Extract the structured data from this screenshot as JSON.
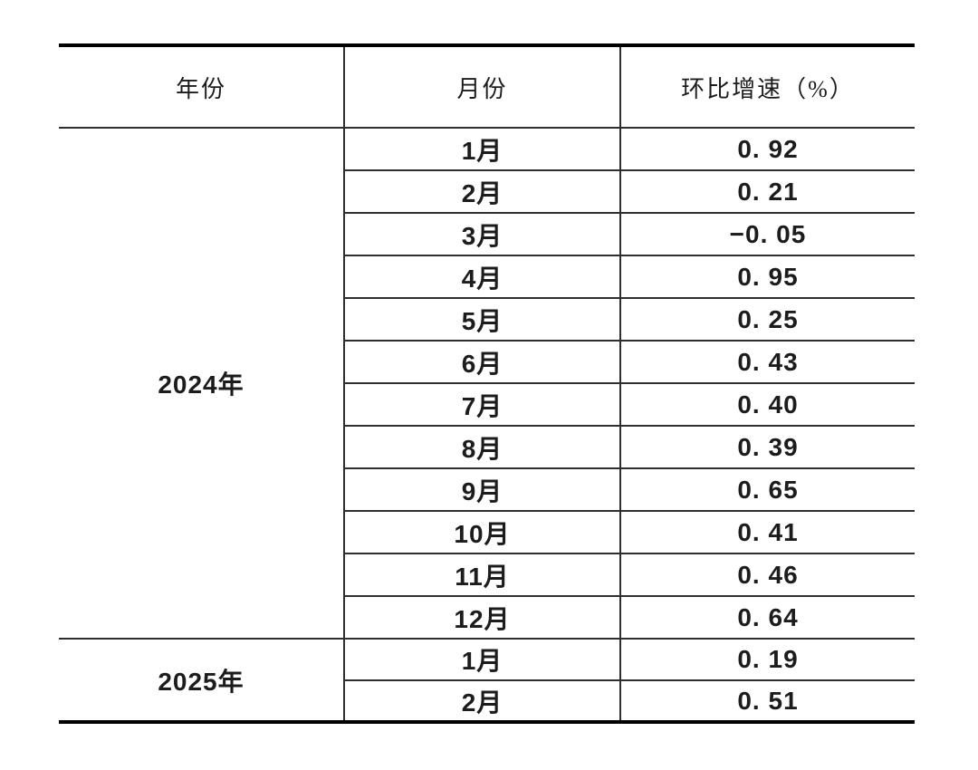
{
  "table": {
    "columns": {
      "year": "年份",
      "month": "月份",
      "value": "环比增速（%）"
    },
    "sections": [
      {
        "year": "2024年",
        "rows": [
          {
            "month": "1月",
            "value": "0. 92"
          },
          {
            "month": "2月",
            "value": "0. 21"
          },
          {
            "month": "3月",
            "value": "−0. 05"
          },
          {
            "month": "4月",
            "value": "0. 95"
          },
          {
            "month": "5月",
            "value": "0. 25"
          },
          {
            "month": "6月",
            "value": "0. 43"
          },
          {
            "month": "7月",
            "value": "0. 40"
          },
          {
            "month": "8月",
            "value": "0. 39"
          },
          {
            "month": "9月",
            "value": "0. 65"
          },
          {
            "month": "10月",
            "value": "0. 41"
          },
          {
            "month": "11月",
            "value": "0. 46"
          },
          {
            "month": "12月",
            "value": "0. 64"
          }
        ]
      },
      {
        "year": "2025年",
        "rows": [
          {
            "month": "1月",
            "value": "0. 19"
          },
          {
            "month": "2月",
            "value": "0. 51"
          }
        ]
      }
    ]
  },
  "chart_data": {
    "type": "table",
    "title": "",
    "columns": [
      "年份",
      "月份",
      "环比增速（%）"
    ],
    "series": [
      {
        "name": "2024年",
        "categories": [
          "1月",
          "2月",
          "3月",
          "4月",
          "5月",
          "6月",
          "7月",
          "8月",
          "9月",
          "10月",
          "11月",
          "12月"
        ],
        "values": [
          0.92,
          0.21,
          -0.05,
          0.95,
          0.25,
          0.43,
          0.4,
          0.39,
          0.65,
          0.41,
          0.46,
          0.64
        ]
      },
      {
        "name": "2025年",
        "categories": [
          "1月",
          "2月"
        ],
        "values": [
          0.19,
          0.51
        ]
      }
    ]
  },
  "colors": {
    "outer_border": "#000000",
    "inner_border": "#2e2e2e",
    "text": "#1c1c1c",
    "background": "#ffffff"
  }
}
